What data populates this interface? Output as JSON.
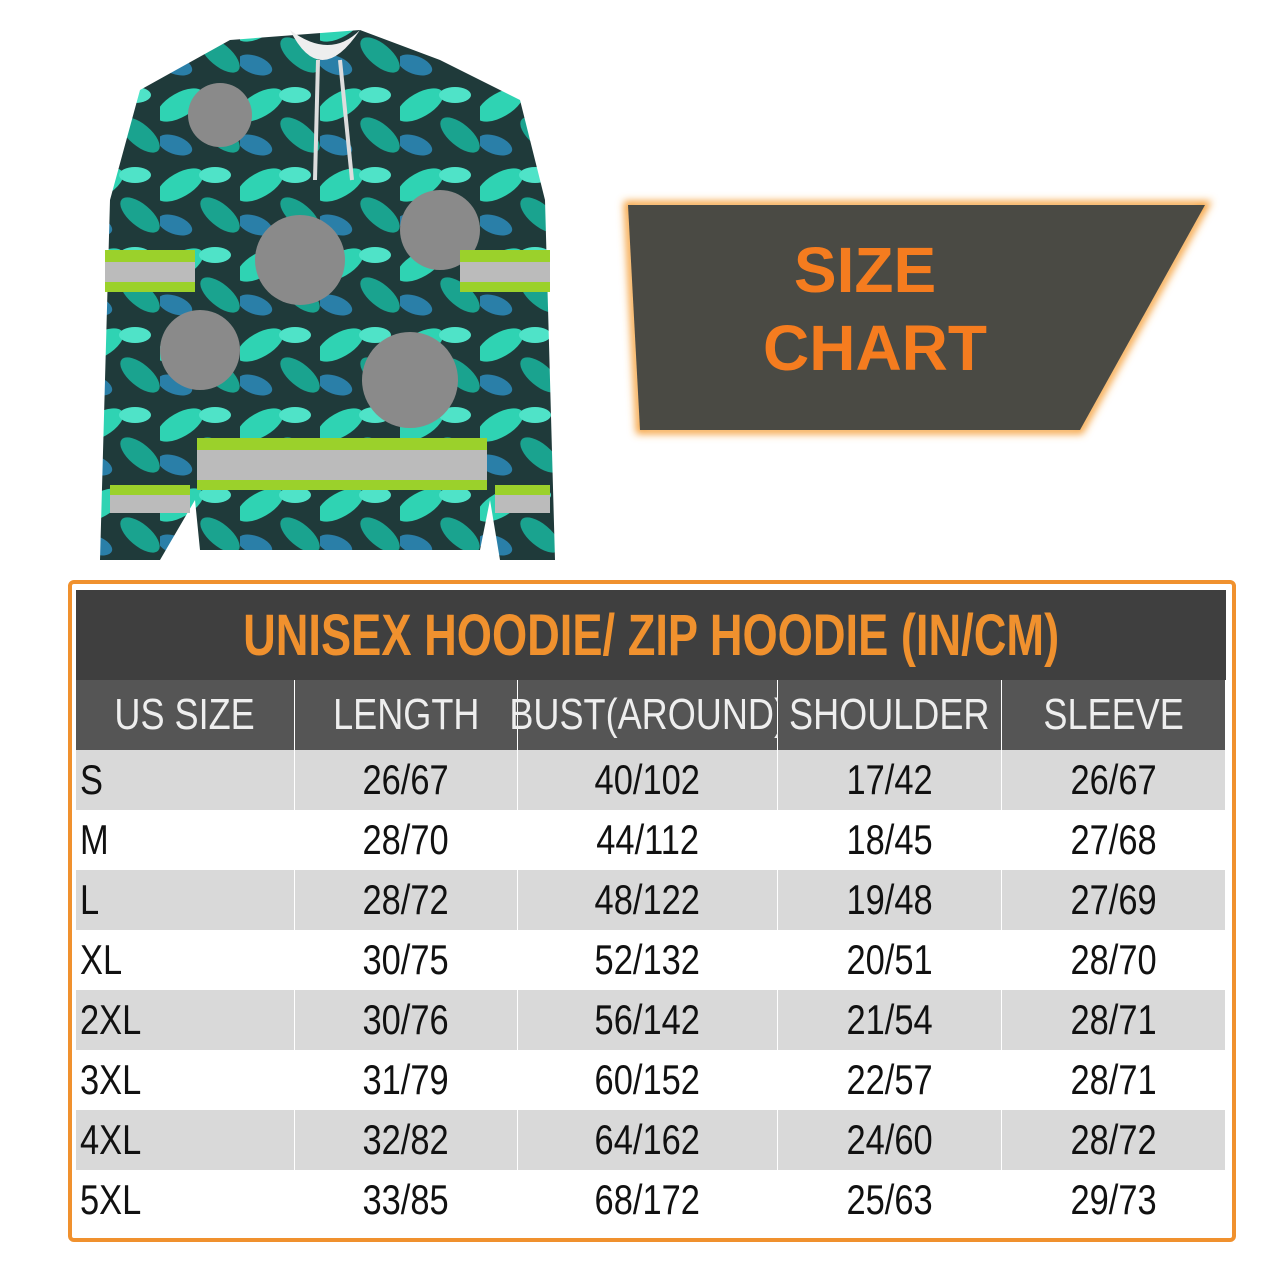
{
  "banner": {
    "lines": [
      "SIZE",
      "CHART"
    ]
  },
  "table": {
    "title": "UNISEX HOODIE/ ZIP HOODIE (IN/CM)",
    "header": [
      "US SIZE",
      "LENGTH",
      "BUST(AROUND)",
      "SHOULDER",
      "SLEEVE"
    ],
    "rows": [
      [
        "S",
        "26/67",
        "40/102",
        "17/42",
        "26/67"
      ],
      [
        "M",
        "28/70",
        "44/112",
        "18/45",
        "27/68"
      ],
      [
        "L",
        "28/72",
        "48/122",
        "19/48",
        "27/69"
      ],
      [
        "XL",
        "30/75",
        "52/132",
        "20/51",
        "28/70"
      ],
      [
        "2XL",
        "30/76",
        "56/142",
        "21/54",
        "28/71"
      ],
      [
        "3XL",
        "31/79",
        "60/152",
        "22/57",
        "28/71"
      ],
      [
        "4XL",
        "32/82",
        "64/162",
        "24/60",
        "28/72"
      ],
      [
        "5XL",
        "33/85",
        "68/172",
        "25/63",
        "29/73"
      ]
    ]
  }
}
